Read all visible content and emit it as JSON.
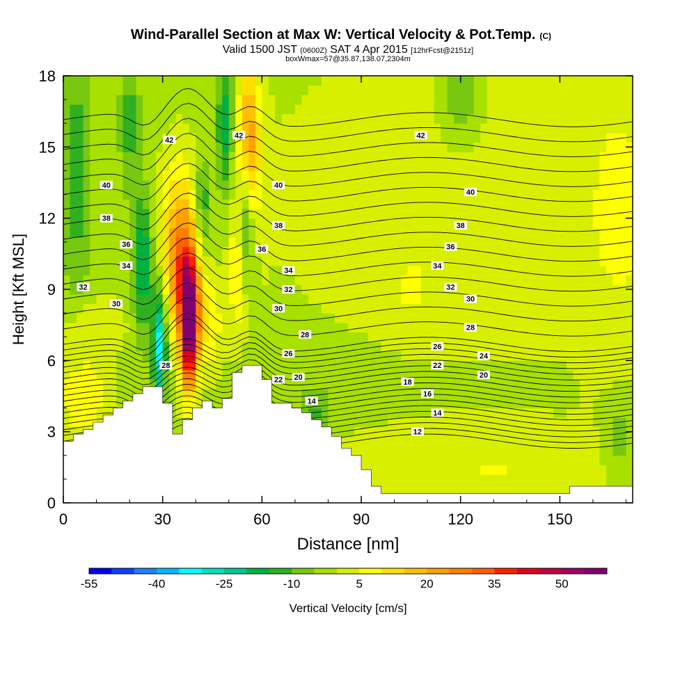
{
  "chart_data": {
    "type": "heatmap",
    "title": "Wind-Parallel Section at Max W: Vertical Velocity & Pot.Temp.",
    "title_mark": "(C)",
    "subtitle_parts": [
      "Valid 1500 JST ",
      "(0600Z)",
      " SAT 4 Apr 2015 ",
      "[12hrFcst@2151z]"
    ],
    "subtitle2": "boxWmax=57@35.87,138.07,2304m",
    "xlabel": "Distance [nm]",
    "ylabel": "Height [Kft MSL]",
    "xlim": [
      0,
      172
    ],
    "ylim": [
      0,
      18
    ],
    "xticks": [
      0,
      30,
      60,
      90,
      120,
      150
    ],
    "yticks": [
      0,
      3,
      6,
      9,
      12,
      15,
      18
    ],
    "colorbar": {
      "label": "Vertical Velocity [cm/s]",
      "range": [
        -55,
        60
      ],
      "step": 5,
      "tick_values": [
        -55,
        -40,
        -25,
        -10,
        5,
        20,
        35,
        50
      ],
      "colors": [
        "#0000ff",
        "#1040ff",
        "#2080ff",
        "#00b8ff",
        "#00ffff",
        "#00e0c0",
        "#00c890",
        "#00b040",
        "#30b020",
        "#78c810",
        "#a8e000",
        "#d8f000",
        "#ffff00",
        "#ffe000",
        "#ffc000",
        "#ffa000",
        "#ff8000",
        "#ff6000",
        "#ff2000",
        "#e00020",
        "#c00040",
        "#a00060",
        "#800070"
      ]
    },
    "contour_field": "Potential temperature",
    "contour_labels": [
      {
        "value": 42,
        "x": 108,
        "y": 15.5
      },
      {
        "value": 42,
        "x": 53,
        "y": 15.5
      },
      {
        "value": 42,
        "x": 32,
        "y": 15.3
      },
      {
        "value": 40,
        "x": 13,
        "y": 13.4
      },
      {
        "value": 40,
        "x": 65,
        "y": 13.4
      },
      {
        "value": 40,
        "x": 123,
        "y": 13.1
      },
      {
        "value": 38,
        "x": 13,
        "y": 12.0
      },
      {
        "value": 38,
        "x": 65,
        "y": 11.7
      },
      {
        "value": 38,
        "x": 120,
        "y": 11.7
      },
      {
        "value": 36,
        "x": 19,
        "y": 10.9
      },
      {
        "value": 36,
        "x": 60,
        "y": 10.7
      },
      {
        "value": 36,
        "x": 117,
        "y": 10.8
      },
      {
        "value": 34,
        "x": 19,
        "y": 10.0
      },
      {
        "value": 34,
        "x": 68,
        "y": 9.8
      },
      {
        "value": 34,
        "x": 113,
        "y": 10.0
      },
      {
        "value": 32,
        "x": 6,
        "y": 9.1
      },
      {
        "value": 32,
        "x": 68,
        "y": 9.0
      },
      {
        "value": 32,
        "x": 117,
        "y": 9.1
      },
      {
        "value": 30,
        "x": 16,
        "y": 8.4
      },
      {
        "value": 30,
        "x": 65,
        "y": 8.2
      },
      {
        "value": 30,
        "x": 123,
        "y": 8.6
      },
      {
        "value": 28,
        "x": 73,
        "y": 7.1
      },
      {
        "value": 28,
        "x": 123,
        "y": 7.4
      },
      {
        "value": 28,
        "x": 31,
        "y": 5.8
      },
      {
        "value": 26,
        "x": 68,
        "y": 6.3
      },
      {
        "value": 26,
        "x": 113,
        "y": 6.6
      },
      {
        "value": 24,
        "x": 127,
        "y": 6.2
      },
      {
        "value": 22,
        "x": 113,
        "y": 5.8
      },
      {
        "value": 22,
        "x": 65,
        "y": 5.2
      },
      {
        "value": 20,
        "x": 71,
        "y": 5.3
      },
      {
        "value": 20,
        "x": 127,
        "y": 5.4
      },
      {
        "value": 18,
        "x": 104,
        "y": 5.1
      },
      {
        "value": 16,
        "x": 110,
        "y": 4.6
      },
      {
        "value": 14,
        "x": 75,
        "y": 4.3
      },
      {
        "value": 14,
        "x": 113,
        "y": 3.8
      },
      {
        "value": 12,
        "x": 107,
        "y": 3.0
      }
    ],
    "terrain_height": [
      [
        0,
        2.6
      ],
      [
        3,
        2.9
      ],
      [
        6,
        3.1
      ],
      [
        9,
        3.4
      ],
      [
        12,
        3.7
      ],
      [
        15,
        4.0
      ],
      [
        18,
        4.3
      ],
      [
        21,
        4.6
      ],
      [
        24,
        4.9
      ],
      [
        27,
        4.9
      ],
      [
        30,
        4.2
      ],
      [
        33,
        2.9
      ],
      [
        36,
        3.5
      ],
      [
        39,
        4.0
      ],
      [
        42,
        4.3
      ],
      [
        45,
        4.0
      ],
      [
        48,
        4.4
      ],
      [
        51,
        5.5
      ],
      [
        54,
        5.8
      ],
      [
        57,
        5.8
      ],
      [
        60,
        5.2
      ],
      [
        63,
        4.2
      ],
      [
        66,
        4.2
      ],
      [
        69,
        4.0
      ],
      [
        72,
        3.8
      ],
      [
        75,
        3.5
      ],
      [
        78,
        3.2
      ],
      [
        81,
        2.8
      ],
      [
        84,
        2.3
      ],
      [
        87,
        2.0
      ],
      [
        90,
        1.4
      ],
      [
        93,
        0.7
      ],
      [
        96,
        0.4
      ],
      [
        150,
        0.4
      ],
      [
        153,
        0.7
      ],
      [
        172,
        0.7
      ]
    ],
    "updraft_max": {
      "value": 57,
      "x": 38,
      "height_kft": 7.6
    },
    "downdraft_min_approx": {
      "value": -25,
      "x": 30,
      "height_kft": 6.5
    }
  }
}
